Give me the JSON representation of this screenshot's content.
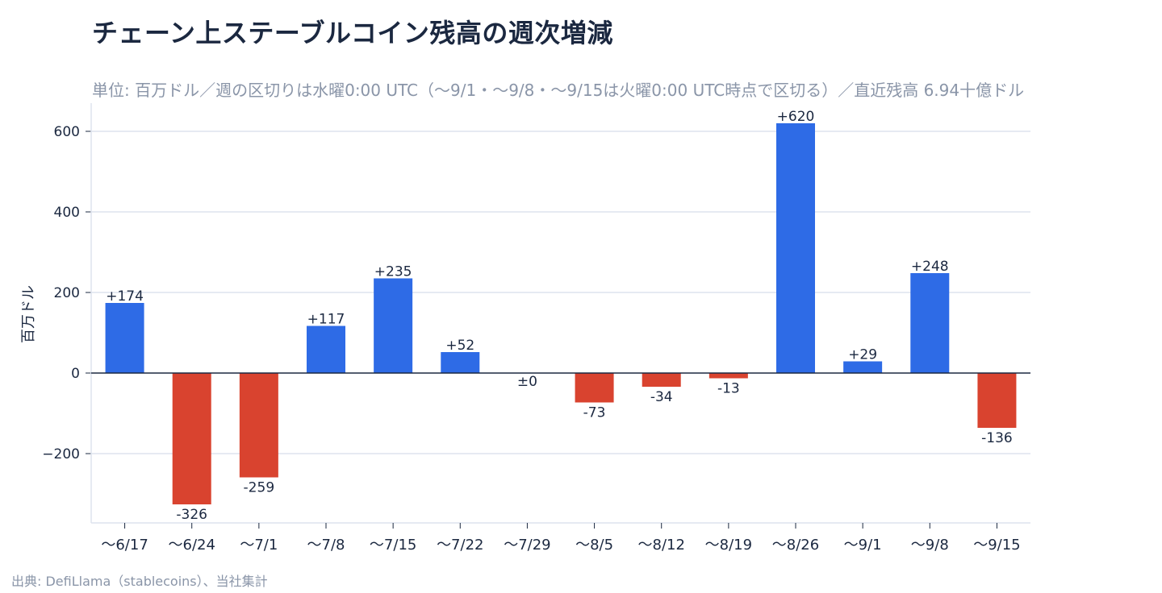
{
  "title": "チェーン上ステーブルコイン残高の週次増減",
  "subtitle": "単位: 百万ドル／週の区切りは水曜0:00 UTC（〜9/1・〜9/8・〜9/15は火曜0:00 UTC時点で区切る）／直近残高 6.94十億ドル",
  "source": "出典: DefiLlama（stablecoins）、当社集計",
  "colors": {
    "positive": "#2e6be6",
    "negative": "#d9432f",
    "axis": "#1b2840",
    "grid": "#dde3ee"
  },
  "chart_data": {
    "type": "bar",
    "ylabel": "百万ドル",
    "xlabel": "",
    "ylim": [
      -370,
      665
    ],
    "yticks": [
      600,
      400,
      200,
      0,
      -200
    ],
    "ytick_labels": [
      "600",
      "400",
      "200",
      "0",
      "−200"
    ],
    "grid": true,
    "categories": [
      "〜6/17",
      "〜6/24",
      "〜7/1",
      "〜7/8",
      "〜7/15",
      "〜7/22",
      "〜7/29",
      "〜8/5",
      "〜8/12",
      "〜8/19",
      "〜8/26",
      "〜9/1",
      "〜9/8",
      "〜9/15"
    ],
    "values": [
      174,
      -326,
      -259,
      117,
      235,
      52,
      0,
      -73,
      -34,
      -13,
      620,
      29,
      248,
      -136
    ],
    "data_labels": [
      "+174",
      "-326",
      "-259",
      "+117",
      "+235",
      "+52",
      "±0",
      "-73",
      "-34",
      "-13",
      "+620",
      "+29",
      "+248",
      "-136"
    ]
  }
}
